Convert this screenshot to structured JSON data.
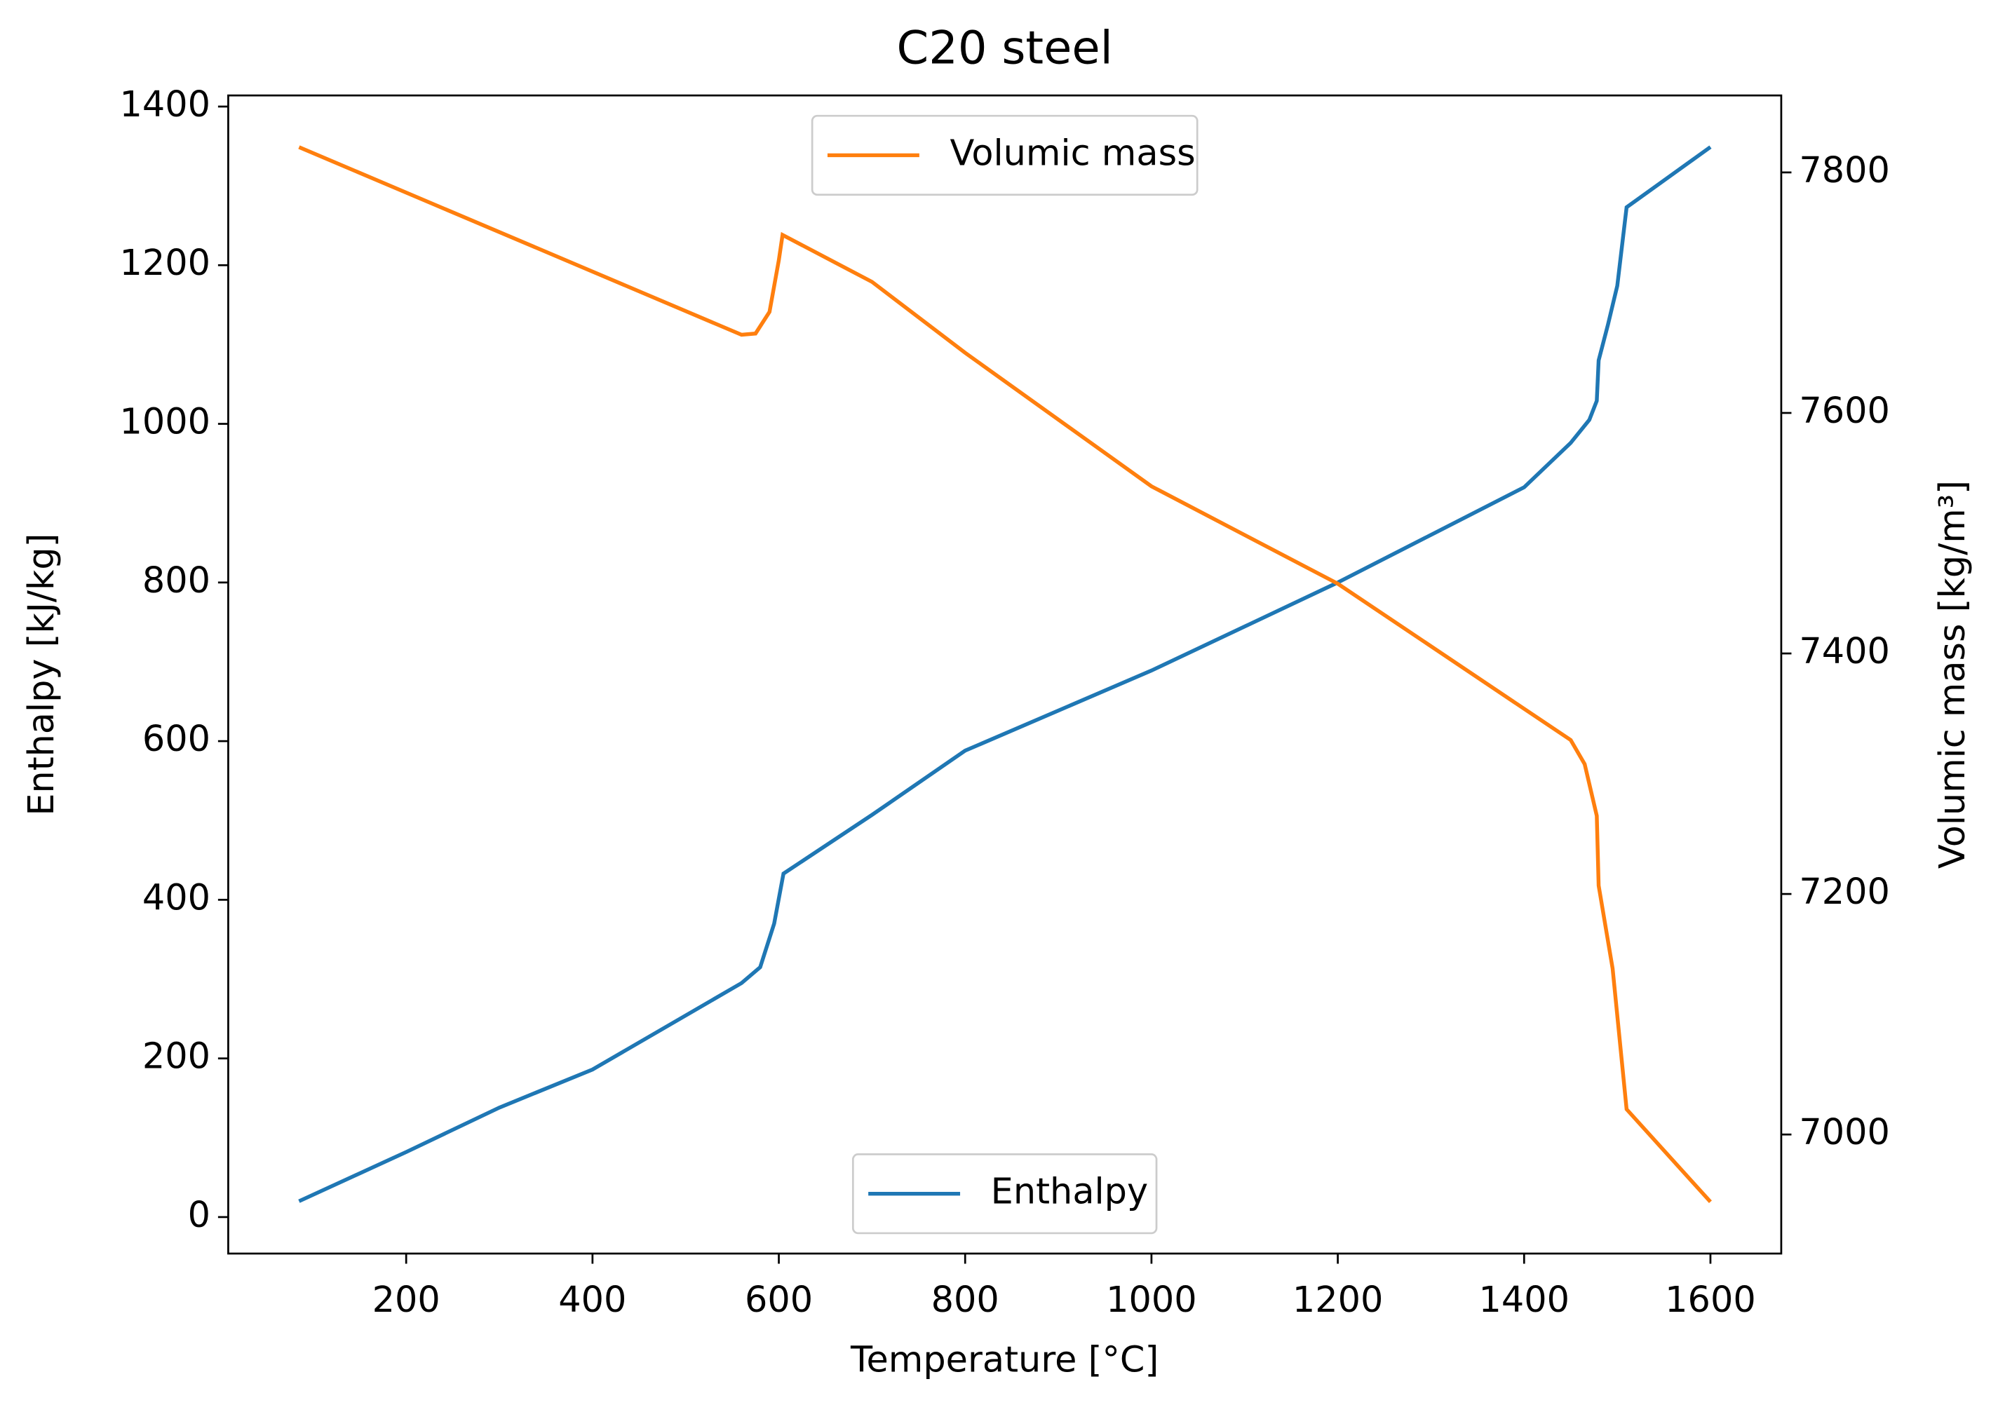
{
  "chart_data": {
    "type": "line",
    "title": "C20 steel",
    "x_label": "Temperature [°C]",
    "y_label": "Enthalpy [kJ/kg]",
    "y2_label": "Volumic mass [kg/m³]",
    "xlim": [
      9,
      1676
    ],
    "xticks": [
      200,
      400,
      600,
      800,
      1000,
      1200,
      1400,
      1600
    ],
    "ylim": [
      -46,
      1414
    ],
    "yticks": [
      0,
      200,
      400,
      600,
      800,
      1000,
      1200,
      1400
    ],
    "y2lim": [
      6901,
      7864
    ],
    "y2ticks": [
      7000,
      7200,
      7400,
      7600,
      7800
    ],
    "series": [
      {
        "name": "Enthalpy",
        "color": "#1f77b4",
        "legend": "lower center",
        "x": [
          85,
          200,
          300,
          400,
          560,
          580,
          595,
          605,
          700,
          800,
          1000,
          1200,
          1400,
          1450,
          1470,
          1478,
          1480,
          1490,
          1500,
          1510,
          1600
        ],
        "values": [
          20,
          82,
          138,
          186,
          295,
          315,
          370,
          433,
          507,
          588,
          689,
          800,
          920,
          976,
          1005,
          1029,
          1080,
          1125,
          1174,
          1273,
          1349
        ]
      },
      {
        "name": "Volumic mass",
        "color": "#ff7f0e",
        "axis": "y2",
        "legend": "upper center",
        "x": [
          85,
          560,
          575,
          590,
          600,
          604,
          700,
          800,
          1000,
          1200,
          1450,
          1465,
          1478,
          1480,
          1495,
          1510,
          1600
        ],
        "values": [
          7821,
          7665,
          7666,
          7684,
          7727,
          7748,
          7709,
          7650,
          7539,
          7458,
          7328,
          7308,
          7265,
          7207,
          7138,
          7021,
          6944
        ]
      }
    ]
  }
}
